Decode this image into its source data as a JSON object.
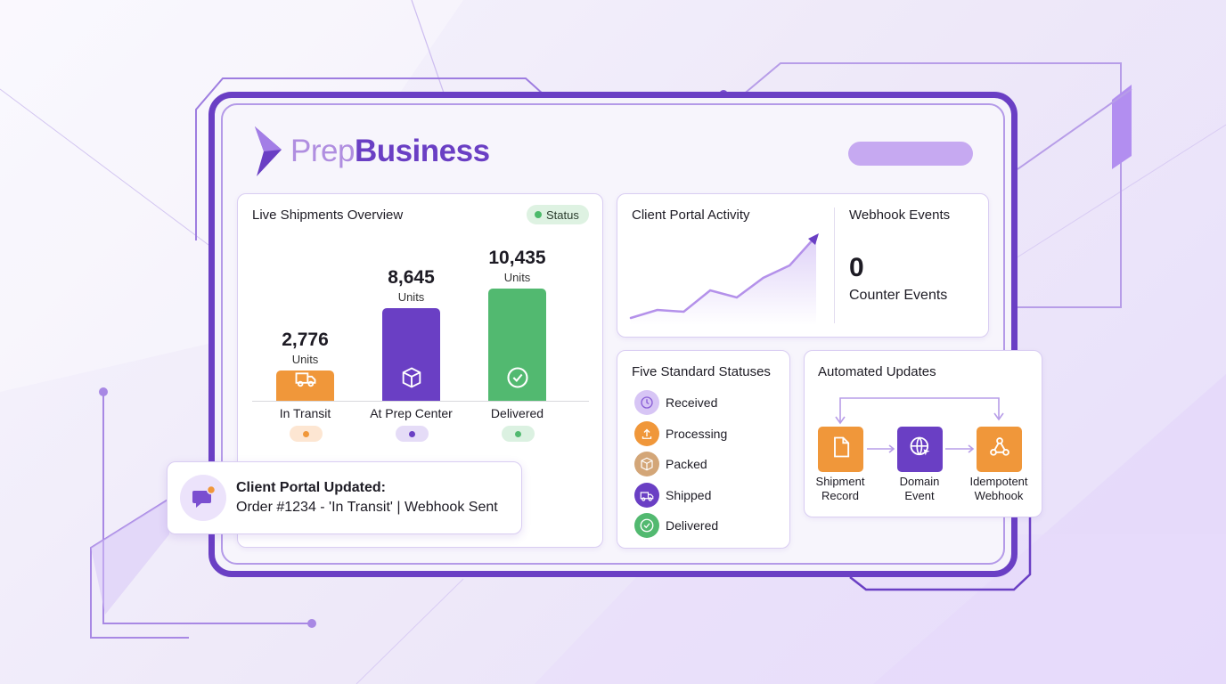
{
  "brand": {
    "prefix": "Prep",
    "suffix": "Business"
  },
  "shipments": {
    "title": "Live Shipments Overview",
    "status_chip": "Status",
    "bars": [
      {
        "value": "2,776",
        "units": "Units",
        "category": "In Transit",
        "amount": 2776,
        "color": "#f0973a",
        "dot_bg": "#fde6d2",
        "dot": "#f0973a",
        "icon": "truck-icon"
      },
      {
        "value": "8,645",
        "units": "Units",
        "category": "At Prep Center",
        "amount": 8645,
        "color": "#6a3fc4",
        "dot_bg": "#e5dcf7",
        "dot": "#6a3fc4",
        "icon": "box-icon"
      },
      {
        "value": "10,435",
        "units": "Units",
        "category": "Delivered",
        "amount": 10435,
        "color": "#52b970",
        "dot_bg": "#dbf1e1",
        "dot": "#52b970",
        "icon": "check-circle-icon"
      }
    ]
  },
  "notification": {
    "title": "Client Portal Updated:",
    "body": "Order #1234 - 'In Transit' | Webhook Sent"
  },
  "activity": {
    "title": "Client Portal Activity",
    "trend": [
      3,
      12,
      10,
      34,
      26,
      48,
      62,
      95
    ]
  },
  "webhooks": {
    "title": "Webhook Events",
    "count": "0",
    "label": "Counter Events"
  },
  "statuses": {
    "title": "Five Standard Statuses",
    "items": [
      {
        "label": "Received",
        "bg": "#d7c5f5",
        "fg": "#8a5fd6",
        "icon": "clock-icon"
      },
      {
        "label": "Processing",
        "bg": "#f0973a",
        "fg": "#ffffff",
        "icon": "upload-icon"
      },
      {
        "label": "Packed",
        "bg": "#d3a678",
        "fg": "#ffffff",
        "icon": "box-icon"
      },
      {
        "label": "Shipped",
        "bg": "#6a3fc4",
        "fg": "#ffffff",
        "icon": "truck-icon"
      },
      {
        "label": "Delivered",
        "bg": "#52b970",
        "fg": "#ffffff",
        "icon": "check-circle-icon"
      }
    ]
  },
  "automation": {
    "title": "Automated Updates",
    "steps": [
      {
        "label_1": "Shipment",
        "label_2": "Record",
        "color": "#f0973a",
        "icon": "document-icon"
      },
      {
        "label_1": "Domain",
        "label_2": "Event",
        "color": "#6a3fc4",
        "icon": "globe-cursor-icon"
      },
      {
        "label_1": "Idempotent",
        "label_2": "Webhook",
        "color": "#f0973a",
        "icon": "webhook-icon"
      }
    ]
  }
}
